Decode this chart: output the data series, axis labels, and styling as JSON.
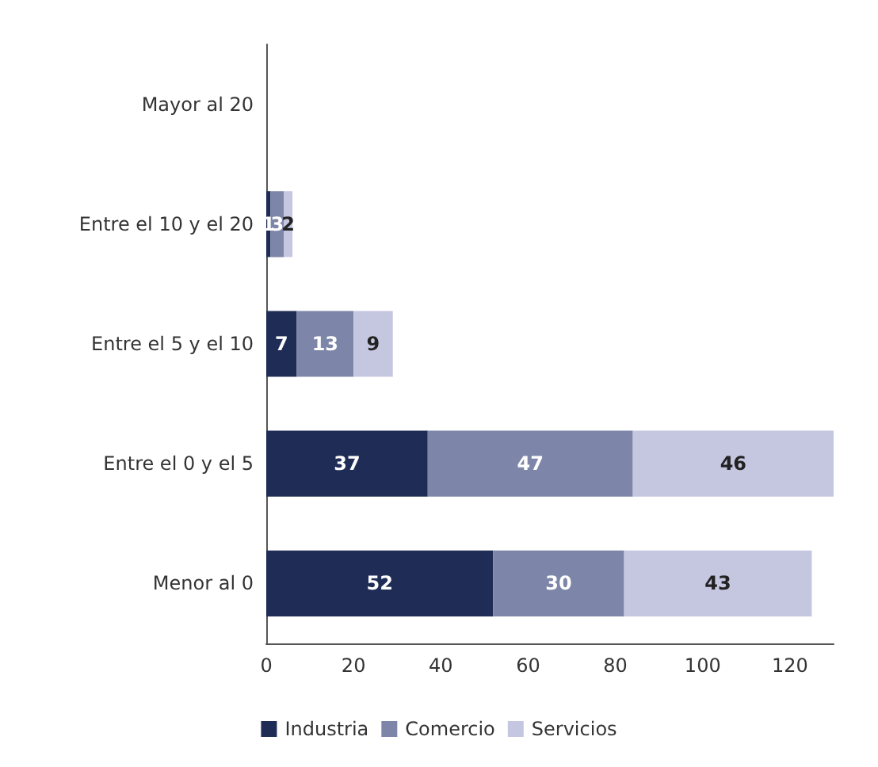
{
  "chart_data": {
    "type": "bar",
    "orientation": "horizontal",
    "stacked": true,
    "data_labels": true,
    "categories": [
      "Mayor al 20",
      "Entre el 10 y el 20",
      "Entre el 5 y el 10",
      "Entre el 0 y el 5",
      "Menor al 0"
    ],
    "series": [
      {
        "name": "Industria",
        "color": "#1f2d56",
        "values": [
          null,
          1,
          7,
          37,
          52
        ]
      },
      {
        "name": "Comercio",
        "color": "#7d86a8",
        "values": [
          null,
          3,
          13,
          47,
          30
        ]
      },
      {
        "name": "Servicios",
        "color": "#c5c6e0",
        "values": [
          null,
          2,
          9,
          46,
          43
        ]
      }
    ],
    "xlim": [
      0,
      130
    ],
    "xticks": [
      0,
      20,
      40,
      60,
      80,
      100,
      120
    ],
    "grid": false,
    "legend": "bottom"
  }
}
